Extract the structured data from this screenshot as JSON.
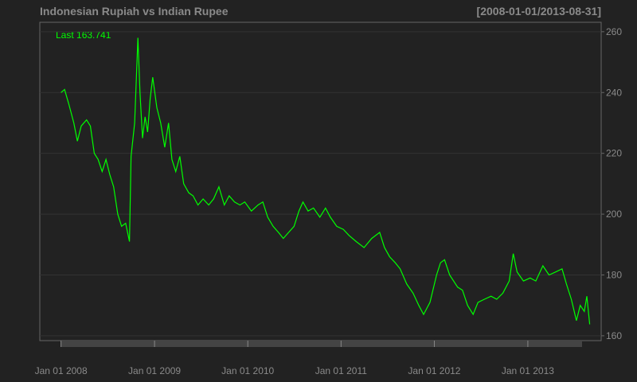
{
  "chart_data": {
    "type": "line",
    "title": "Indonesian Rupiah vs Indian Rupee",
    "subtitle": "[2008-01-01/2013-08-31]",
    "annotation": "Last 163.741",
    "grid": true,
    "xlim": [
      "2007-10-10",
      "2013-10-15"
    ],
    "ylim": [
      158.4,
      263.1
    ],
    "yticks": [
      160,
      180,
      200,
      220,
      240,
      260
    ],
    "xticks": [
      {
        "value": "2008-01-01",
        "label": "Jan 01 2008"
      },
      {
        "value": "2009-01-01",
        "label": "Jan 01 2009"
      },
      {
        "value": "2010-01-01",
        "label": "Jan 01 2010"
      },
      {
        "value": "2011-01-01",
        "label": "Jan 01 2011"
      },
      {
        "value": "2012-01-01",
        "label": "Jan 01 2012"
      },
      {
        "value": "2013-01-01",
        "label": "Jan 01 2013"
      }
    ],
    "x": [
      "2008-01-01",
      "2008-01-15",
      "2008-02-01",
      "2008-02-20",
      "2008-03-05",
      "2008-03-20",
      "2008-04-10",
      "2008-04-25",
      "2008-05-10",
      "2008-05-25",
      "2008-06-10",
      "2008-06-25",
      "2008-07-10",
      "2008-07-25",
      "2008-08-10",
      "2008-08-25",
      "2008-09-10",
      "2008-09-25",
      "2008-10-01",
      "2008-10-15",
      "2008-10-28",
      "2008-11-05",
      "2008-11-15",
      "2008-11-25",
      "2008-12-05",
      "2008-12-15",
      "2008-12-25",
      "2009-01-10",
      "2009-01-25",
      "2009-02-10",
      "2009-02-25",
      "2009-03-10",
      "2009-03-25",
      "2009-04-10",
      "2009-04-25",
      "2009-05-15",
      "2009-06-01",
      "2009-06-20",
      "2009-07-10",
      "2009-08-01",
      "2009-08-20",
      "2009-09-10",
      "2009-10-01",
      "2009-10-20",
      "2009-11-10",
      "2009-12-01",
      "2009-12-20",
      "2010-01-15",
      "2010-02-10",
      "2010-03-01",
      "2010-03-20",
      "2010-04-10",
      "2010-05-01",
      "2010-05-20",
      "2010-06-10",
      "2010-07-01",
      "2010-07-20",
      "2010-08-05",
      "2010-08-25",
      "2010-09-15",
      "2010-10-10",
      "2010-11-01",
      "2010-11-20",
      "2010-12-15",
      "2011-01-10",
      "2011-02-01",
      "2011-03-01",
      "2011-04-01",
      "2011-05-01",
      "2011-06-01",
      "2011-06-20",
      "2011-07-10",
      "2011-08-01",
      "2011-08-20",
      "2011-09-15",
      "2011-10-10",
      "2011-11-01",
      "2011-11-20",
      "2011-12-15",
      "2012-01-10",
      "2012-01-25",
      "2012-02-10",
      "2012-03-01",
      "2012-04-01",
      "2012-04-20",
      "2012-05-10",
      "2012-06-01",
      "2012-06-20",
      "2012-07-15",
      "2012-08-10",
      "2012-09-01",
      "2012-09-25",
      "2012-10-20",
      "2012-11-05",
      "2012-11-20",
      "2012-12-15",
      "2013-01-10",
      "2013-02-01",
      "2013-03-01",
      "2013-03-25",
      "2013-04-20",
      "2013-05-15",
      "2013-06-01",
      "2013-06-20",
      "2013-07-10",
      "2013-07-25",
      "2013-08-10",
      "2013-08-20",
      "2013-08-31"
    ],
    "series": [
      {
        "name": "Indonesian Rupiah vs Indian Rupee",
        "color": "#00ff00",
        "values": [
          240,
          241,
          236,
          230,
          224,
          229,
          231,
          229,
          220,
          218,
          214,
          218,
          213,
          209,
          200,
          196,
          197,
          191,
          219,
          230,
          258,
          240,
          225,
          232,
          227,
          238,
          245,
          235,
          230,
          222,
          230,
          218,
          214,
          219,
          210,
          207,
          206,
          203,
          205,
          203,
          205,
          209,
          203,
          206,
          204,
          203,
          204,
          201,
          203,
          204,
          199,
          196,
          194,
          192,
          194,
          196,
          201,
          204,
          201,
          202,
          199,
          202,
          199,
          196,
          195,
          193,
          191,
          189,
          192,
          194,
          189,
          186,
          184,
          182,
          177,
          174,
          170,
          167,
          171,
          180,
          184,
          185,
          180,
          176,
          175,
          170,
          167,
          171,
          172,
          173,
          172,
          174,
          178,
          187,
          181,
          178,
          179,
          178,
          183,
          180,
          181,
          182,
          177,
          172,
          165,
          170,
          168,
          173,
          163.741
        ]
      }
    ]
  }
}
